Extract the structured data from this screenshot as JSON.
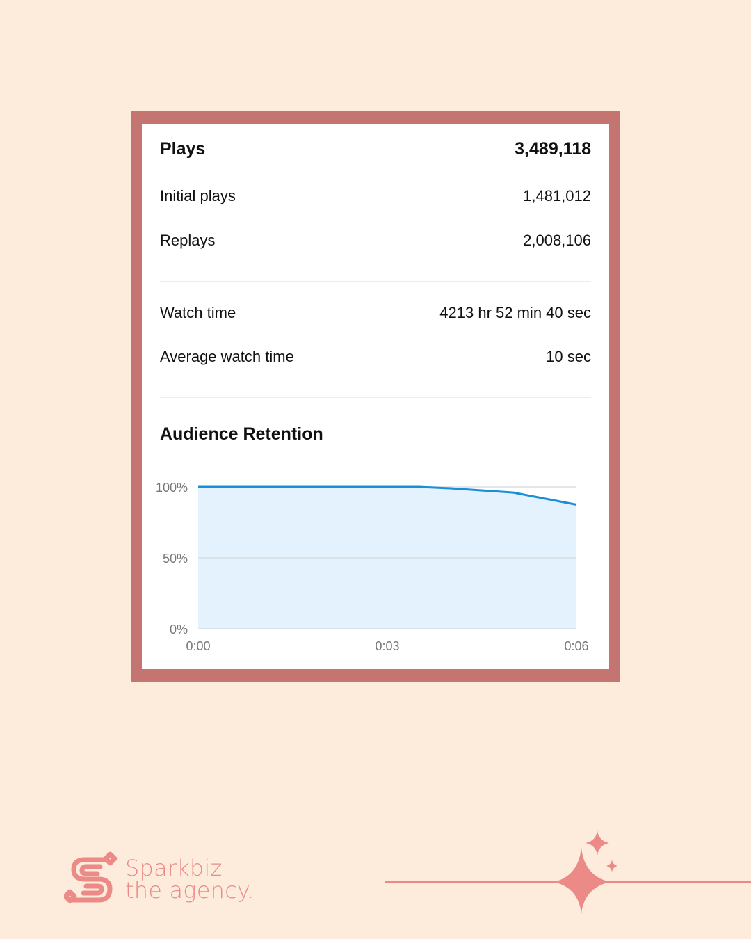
{
  "stats": {
    "plays_label": "Plays",
    "plays_value": "3,489,118",
    "initial_label": "Initial plays",
    "initial_value": "1,481,012",
    "replays_label": "Replays",
    "replays_value": "2,008,106",
    "watch_label": "Watch time",
    "watch_value": "4213 hr 52 min 40 sec",
    "avg_label": "Average watch time",
    "avg_value": "10 sec"
  },
  "retention": {
    "title": "Audience Retention"
  },
  "chart_data": {
    "type": "area",
    "title": "Audience Retention",
    "xlabel": "",
    "ylabel": "",
    "x": [
      0,
      1,
      2,
      3,
      3.5,
      4,
      5,
      6
    ],
    "x_unit": "seconds",
    "series": [
      {
        "values": [
          100,
          100,
          100,
          100,
          100,
          99,
          96,
          87.5
        ]
      }
    ],
    "x_ticks": [
      "0:00",
      "0:03",
      "0:06"
    ],
    "x_tick_values": [
      0,
      3,
      6
    ],
    "y_ticks": [
      "0%",
      "50%",
      "100%"
    ],
    "y_tick_values": [
      0,
      50,
      100
    ],
    "ylim": [
      0,
      100
    ],
    "xlim": [
      0,
      6
    ],
    "grid": true,
    "colors": {
      "line": "#1a8fd8",
      "fill": "#e3f2fd",
      "grid": "#d9dde3"
    }
  },
  "brand": {
    "line1": "Sparkbiz",
    "line2": "the agency."
  },
  "colors": {
    "background": "#fdecdc",
    "frame": "#c57571",
    "accent": "#ec8a87"
  }
}
